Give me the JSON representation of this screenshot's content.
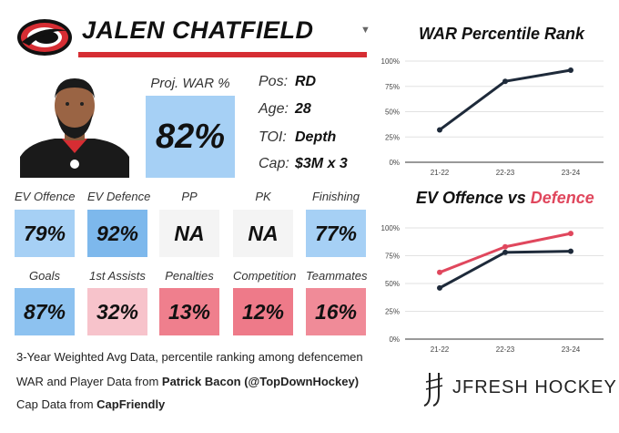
{
  "player": {
    "name": "JALEN CHATFIELD"
  },
  "proj_war": {
    "label": "Proj. WAR %",
    "value": "82%",
    "color": "#a6d0f5"
  },
  "info": [
    {
      "key": "Pos:",
      "value": "RD"
    },
    {
      "key": "Age:",
      "value": "28"
    },
    {
      "key": "TOI:",
      "value": "Depth"
    },
    {
      "key": "Cap:",
      "value": "$3M x 3"
    }
  ],
  "tiles": [
    {
      "label": "EV Offence",
      "value": "79%",
      "color": "#a6d0f5"
    },
    {
      "label": "EV Defence",
      "value": "92%",
      "color": "#7db8ec"
    },
    {
      "label": "PP",
      "value": "NA",
      "color": "#f4f4f4"
    },
    {
      "label": "PK",
      "value": "NA",
      "color": "#f4f4f4"
    },
    {
      "label": "Finishing",
      "value": "77%",
      "color": "#a6d0f5"
    },
    {
      "label": "Goals",
      "value": "87%",
      "color": "#8dc2f0"
    },
    {
      "label": "1st Assists",
      "value": "32%",
      "color": "#f7c3cb"
    },
    {
      "label": "Penalties",
      "value": "13%",
      "color": "#ef7f8d"
    },
    {
      "label": "Competition",
      "value": "12%",
      "color": "#ee7a89"
    },
    {
      "label": "Teammates",
      "value": "16%",
      "color": "#f08b98"
    }
  ],
  "footnote": "3-Year Weighted Avg Data, percentile ranking among defencemen",
  "credits": [
    {
      "prefix": "WAR and Player Data from ",
      "source": "Patrick Bacon (@TopDownHockey)"
    },
    {
      "prefix": "Cap Data from ",
      "source": "CapFriendly"
    }
  ],
  "brand": {
    "name": "JFRESH HOCKEY"
  },
  "charts": {
    "war": {
      "title": "WAR Percentile Rank"
    },
    "ev": {
      "title_part1": "EV Offence",
      "title_part2": " vs ",
      "title_part3": "Defence"
    }
  },
  "chart_data": [
    {
      "type": "line",
      "title": "WAR Percentile Rank",
      "categories": [
        "21-22",
        "22-23",
        "23-24"
      ],
      "y_ticks": [
        "100%",
        "75%",
        "50%",
        "25%",
        "0%"
      ],
      "ylim": [
        0,
        100
      ],
      "grid": true,
      "series": [
        {
          "values": [
            32,
            80,
            91
          ],
          "color": "#1e2a3a"
        }
      ]
    },
    {
      "type": "line",
      "title": "EV Offence vs Defence",
      "categories": [
        "21-22",
        "22-23",
        "23-24"
      ],
      "y_ticks": [
        "100%",
        "75%",
        "50%",
        "25%",
        "0%"
      ],
      "ylim": [
        0,
        100
      ],
      "grid": true,
      "series": [
        {
          "name": "EV Offence",
          "values": [
            46,
            78,
            79
          ],
          "color": "#1e2a3a"
        },
        {
          "name": "Defence",
          "values": [
            60,
            83,
            95
          ],
          "color": "#e0475d"
        }
      ]
    }
  ]
}
